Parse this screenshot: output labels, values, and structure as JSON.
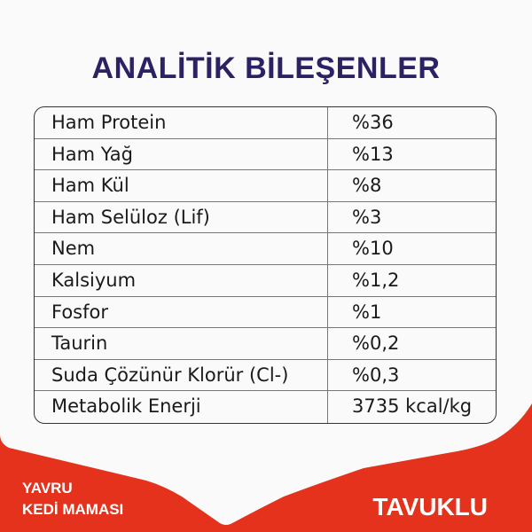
{
  "title": "ANALİTİK BİLEŞENLER",
  "rows": [
    {
      "name": "Ham Protein",
      "value": "%36"
    },
    {
      "name": "Ham Yağ",
      "value": "%13"
    },
    {
      "name": "Ham Kül",
      "value": "%8"
    },
    {
      "name": "Ham Selüloz (Lif)",
      "value": "%3"
    },
    {
      "name": "Nem",
      "value": "%10"
    },
    {
      "name": "Kalsiyum",
      "value": "%1,2"
    },
    {
      "name": "Fosfor",
      "value": "%1"
    },
    {
      "name": "Taurin",
      "value": "%0,2"
    },
    {
      "name": "Suda Çözünür Klorür (Cl-)",
      "value": "%0,3"
    },
    {
      "name": "Metabolik Enerji",
      "value": "3735 kcal/kg"
    }
  ],
  "footer": {
    "line1": "YAVRU",
    "line2": "KEDİ MAMASI",
    "flavor": "TAVUKLU"
  },
  "colors": {
    "red": "#e4321c",
    "navy": "#2b2163",
    "background": "#fafafa"
  }
}
